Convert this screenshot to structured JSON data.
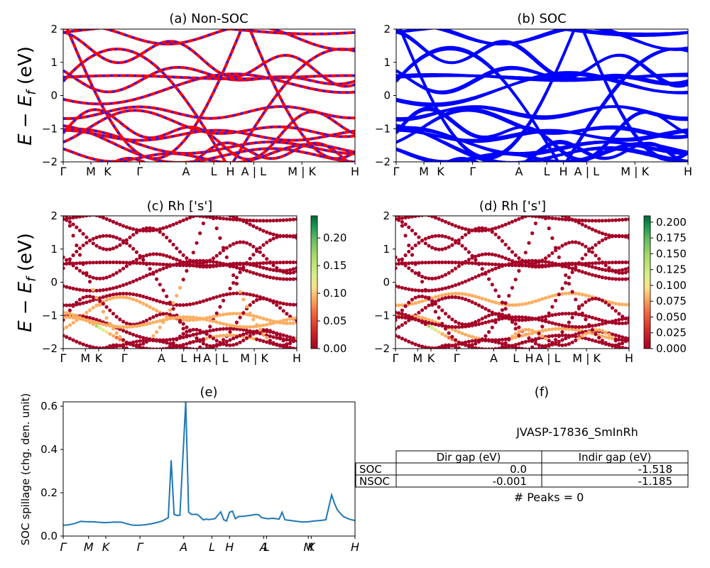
{
  "figure": {
    "ylabel_ef": "E − E_f (eV)",
    "spillage_ylabel": "SOC spillage (chg. den. unit)"
  },
  "panels": {
    "a": {
      "title": "(a) Non-SOC"
    },
    "b": {
      "title": "(b) SOC"
    },
    "c": {
      "title": "(c)  Rh ['s']",
      "colorbar_ticks": [
        "0.00",
        "0.05",
        "0.10",
        "0.15",
        "0.20"
      ]
    },
    "d": {
      "title": "(d) Rh ['s']",
      "colorbar_ticks": [
        "0.000",
        "0.025",
        "0.050",
        "0.075",
        "0.100",
        "0.125",
        "0.150",
        "0.175",
        "0.200"
      ]
    },
    "e": {
      "title": "(e)"
    },
    "f": {
      "title": "(f)",
      "material": "JVASP-17836_SmInRh",
      "table": {
        "headers": [
          "Dir gap (eV)",
          "Indir gap (eV)"
        ],
        "rows": [
          {
            "label": "SOC",
            "dir": "0.0",
            "indir": "-1.518"
          },
          {
            "label": "NSOC",
            "dir": "-0.001",
            "indir": "-1.185"
          }
        ]
      },
      "peaks": "# Peaks = 0"
    }
  },
  "colors": {
    "nonsoc_red": "#ff0000",
    "nonsoc_blue": "#1f1fff",
    "soc_blue": "#0000ff",
    "spillage_line": "#1f77b4"
  },
  "chart_data": [
    {
      "type": "line",
      "title": "(a) Non-SOC",
      "ylabel": "E − E_f (eV)",
      "ylim": [
        -2,
        2
      ],
      "yticks": [
        "−2",
        "−1",
        "0",
        "1",
        "2"
      ],
      "xticks": [
        "Γ",
        "M",
        "K",
        "Γ",
        "A",
        "L",
        "H",
        "A | L",
        "M | K",
        "H"
      ]
    },
    {
      "type": "line",
      "title": "(b) SOC",
      "ylim": [
        -2,
        2
      ],
      "yticks": [
        "−2",
        "−1",
        "0",
        "1",
        "2"
      ],
      "xticks": [
        "Γ",
        "M",
        "K",
        "Γ",
        "A",
        "L",
        "H",
        "A | L",
        "M | K",
        "H"
      ]
    },
    {
      "type": "scatter",
      "title": "(c)  Rh ['s']",
      "ylabel": "E − E_f (eV)",
      "ylim": [
        -2,
        2
      ],
      "colorbar_range": [
        0,
        0.24
      ],
      "xticks": [
        "Γ",
        "M",
        "K",
        "Γ",
        "A",
        "L",
        "H",
        "A | L",
        "M | K",
        "H"
      ]
    },
    {
      "type": "scatter",
      "title": "(d) Rh ['s']",
      "ylim": [
        -2,
        2
      ],
      "colorbar_range": [
        0,
        0.21
      ],
      "xticks": [
        "Γ",
        "M",
        "K",
        "Γ",
        "A",
        "L",
        "H",
        "A | L",
        "M | K",
        "H"
      ]
    },
    {
      "type": "line",
      "title": "(e)",
      "ylabel": "SOC spillage (chg. den. unit)",
      "ylim": [
        0,
        0.62
      ],
      "yticks": [
        "0.0",
        "0.2",
        "0.4",
        "0.6"
      ],
      "xticks": [
        "Γ",
        "M",
        "K",
        "Γ",
        "A",
        "L",
        "H",
        "A",
        "L",
        "M",
        "K",
        "H"
      ],
      "x": [
        0,
        0.02,
        0.04,
        0.06,
        0.08,
        0.1,
        0.12,
        0.14,
        0.16,
        0.18,
        0.2,
        0.22,
        0.24,
        0.26,
        0.28,
        0.3,
        0.32,
        0.34,
        0.36,
        0.37,
        0.38,
        0.39,
        0.4,
        0.42,
        0.43,
        0.44,
        0.45,
        0.46,
        0.48,
        0.49,
        0.5,
        0.52,
        0.54,
        0.55,
        0.56,
        0.57,
        0.58,
        0.59,
        0.6,
        0.62,
        0.64,
        0.66,
        0.67,
        0.68,
        0.7,
        0.72,
        0.74,
        0.75,
        0.76,
        0.78,
        0.8,
        0.82,
        0.84,
        0.86,
        0.88,
        0.9,
        0.92,
        0.93,
        0.94,
        0.96,
        0.98,
        1.0
      ],
      "y": [
        0.05,
        0.052,
        0.058,
        0.068,
        0.066,
        0.066,
        0.064,
        0.062,
        0.063,
        0.065,
        0.064,
        0.056,
        0.05,
        0.05,
        0.052,
        0.056,
        0.062,
        0.07,
        0.085,
        0.35,
        0.1,
        0.095,
        0.096,
        0.62,
        0.11,
        0.1,
        0.1,
        0.1,
        0.075,
        0.078,
        0.076,
        0.08,
        0.112,
        0.075,
        0.07,
        0.11,
        0.115,
        0.08,
        0.09,
        0.092,
        0.095,
        0.1,
        0.098,
        0.085,
        0.08,
        0.082,
        0.078,
        0.11,
        0.075,
        0.072,
        0.068,
        0.065,
        0.066,
        0.07,
        0.072,
        0.075,
        0.19,
        0.15,
        0.12,
        0.09,
        0.078,
        0.072
      ]
    }
  ]
}
